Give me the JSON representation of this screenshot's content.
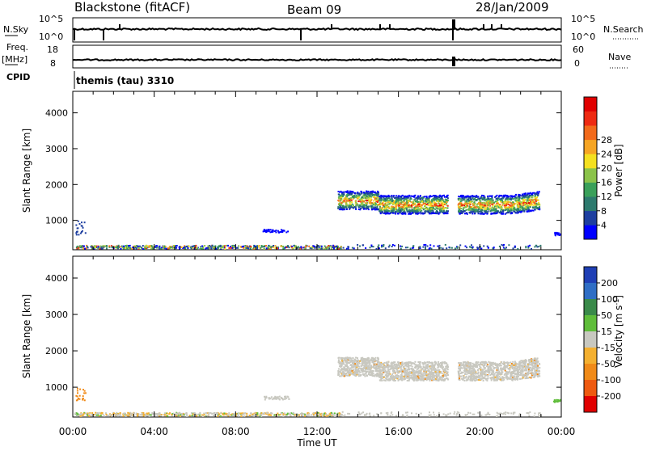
{
  "header": {
    "station": "Blackstone (fitACF)",
    "beam": "Beam 09",
    "date": "28/Jan/2009"
  },
  "summary_panels": {
    "left_nsky": "N.Sky",
    "right_nsearch": "N.Search",
    "nsky_ticks": [
      "10^5",
      "10^0"
    ],
    "nsearch_ticks": [
      "10^5",
      "10^0"
    ],
    "freq_label": "Freq.",
    "freq_unit": "[MHz]",
    "freq_ticks": [
      "18",
      "8"
    ],
    "nave_label": "Nave",
    "nave_ticks": [
      "60",
      "0"
    ],
    "cpid_label": "CPID",
    "cpid_value": "themis (tau) 3310"
  },
  "chart_data": [
    {
      "type": "heatmap",
      "name": "power-panel",
      "ylabel": "Slant Range [km]",
      "xlabel": "",
      "yticks": [
        1000,
        2000,
        3000,
        4000
      ],
      "ylim": [
        180,
        4600
      ],
      "xlim_hours": [
        0,
        24
      ],
      "colorbar_label": "Power [dB]",
      "colorbar_ticks": [
        "4",
        "8",
        "12",
        "16",
        "20",
        "24",
        "28"
      ],
      "colorbar_colors": [
        "#0000ff",
        "#1e3fa0",
        "#2d7a6e",
        "#3aa05a",
        "#8bc34a",
        "#f4e020",
        "#f6a524",
        "#f26a1b",
        "#ee2a12",
        "#e00000"
      ]
    },
    {
      "type": "heatmap",
      "name": "velocity-panel",
      "ylabel": "Slant Range [km]",
      "xlabel": "Time UT",
      "yticks": [
        1000,
        2000,
        3000,
        4000
      ],
      "ylim": [
        180,
        4600
      ],
      "xlim_hours": [
        0,
        24
      ],
      "xticks": [
        "00:00",
        "04:00",
        "08:00",
        "12:00",
        "16:00",
        "20:00",
        "00:00"
      ],
      "colorbar_label": "Velocity [m s^-1]",
      "colorbar_ticks": [
        "200",
        "100",
        "50",
        "15",
        "-15",
        "-50",
        "-100",
        "-200"
      ],
      "colorbar_colors": [
        "#1f3fb5",
        "#2f6ec5",
        "#3a8a4a",
        "#5fbd3a",
        "#c8c8c0",
        "#f4b030",
        "#f08a18",
        "#ee5a10",
        "#e00000"
      ]
    }
  ]
}
